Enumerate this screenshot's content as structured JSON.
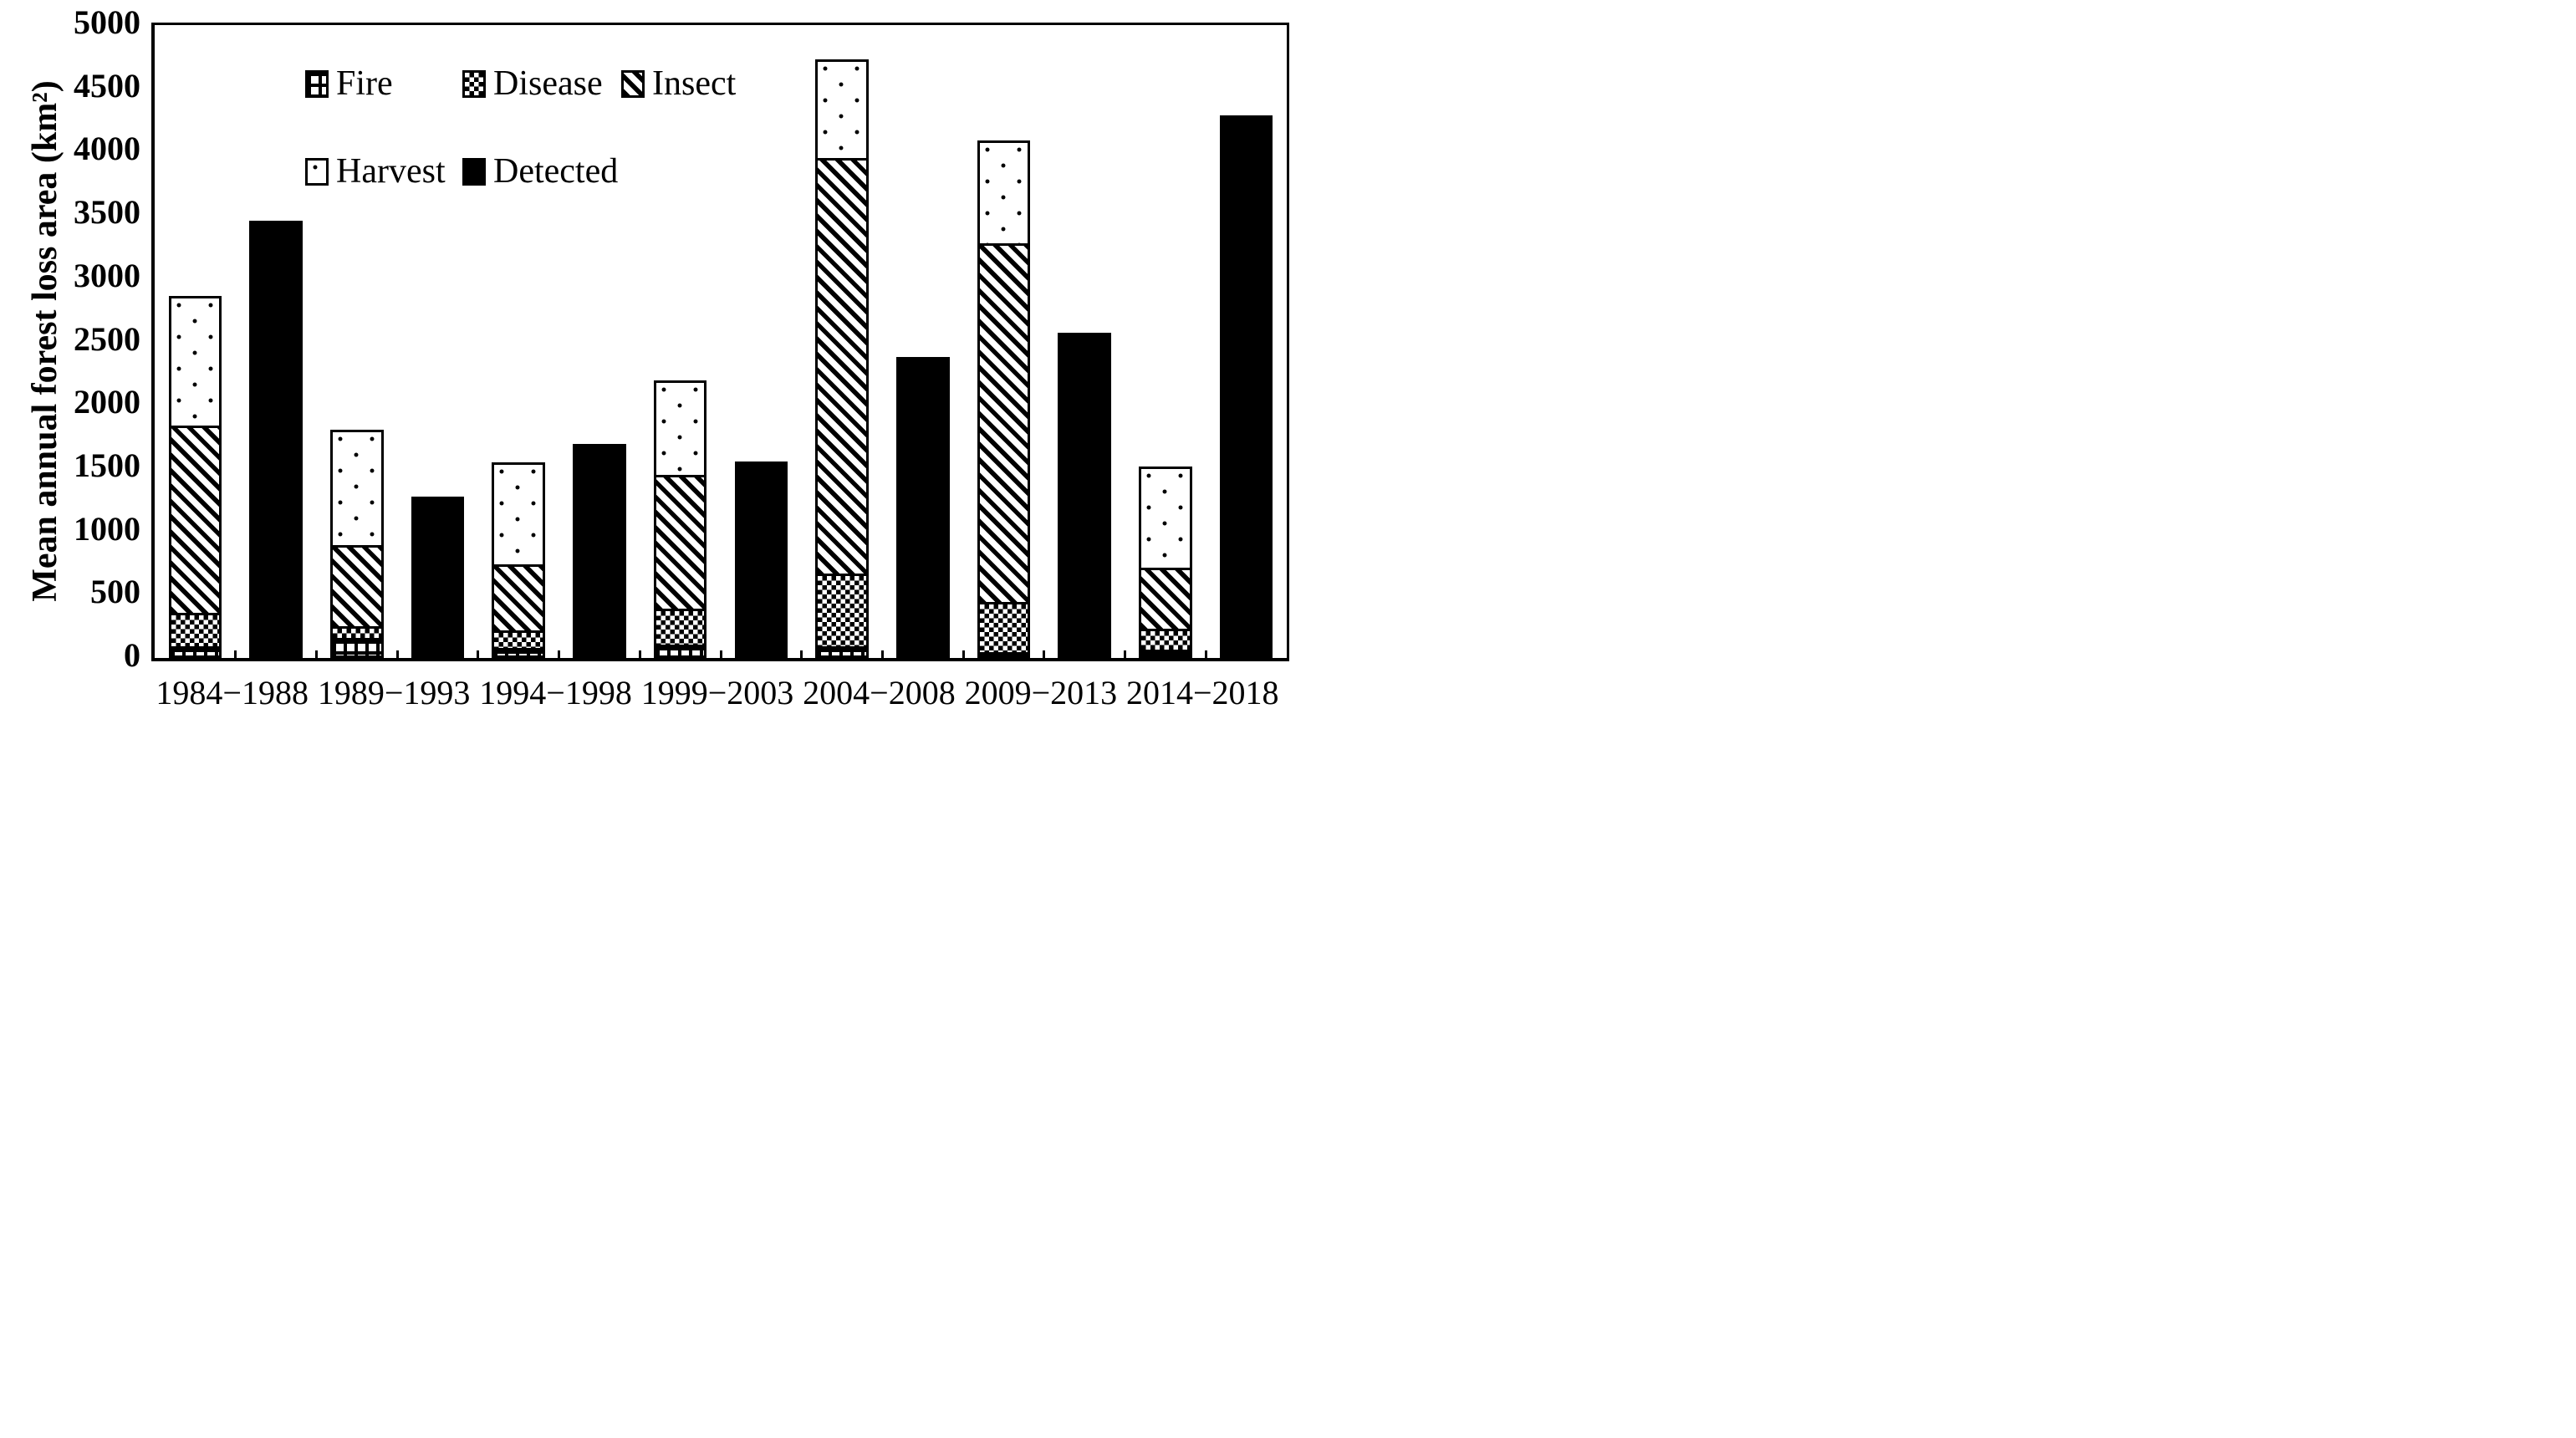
{
  "figure": {
    "background": "#ffffff",
    "ink": "#000000"
  },
  "y_axis": {
    "title": "Mean annual forest loss area (km²)",
    "min": 0,
    "max": 5000,
    "step": 500
  },
  "x_axis": {
    "categories": [
      "1984−1988",
      "1989−1993",
      "1994−1998",
      "1999−2003",
      "2004−2008",
      "2009−2013",
      "2014−2018"
    ]
  },
  "legend": {
    "rows": [
      [
        {
          "label": "Fire",
          "pattern": "fire-pattern"
        },
        {
          "label": "Disease",
          "pattern": "disease-pattern"
        },
        {
          "label": "Insect",
          "pattern": "insect-pattern"
        }
      ],
      [
        {
          "label": "Harvest",
          "pattern": "harvest-pattern"
        },
        {
          "label": "Detected",
          "pattern": "detected-pattern"
        }
      ]
    ]
  },
  "chart_data": {
    "type": "bar",
    "subtype": "stacked-plus-single-grouped",
    "title": "",
    "xlabel": "",
    "ylabel": "Mean annual forest loss area (km²)",
    "ylim": [
      0,
      5000
    ],
    "ytick_step": 500,
    "grid": false,
    "legend_position": "inside-top-left",
    "categories": [
      "1984−1988",
      "1989−1993",
      "1994−1998",
      "1999−2003",
      "2004−2008",
      "2009−2013",
      "2014−2018"
    ],
    "stack_order_bottom_to_top": [
      "Fire",
      "Disease",
      "Insect",
      "Harvest"
    ],
    "series": [
      {
        "name": "Fire",
        "pattern": "fire-pattern",
        "values": [
          75,
          140,
          60,
          90,
          70,
          25,
          45
        ]
      },
      {
        "name": "Disease",
        "pattern": "disease-pattern",
        "values": [
          265,
          95,
          140,
          285,
          580,
          400,
          170
        ]
      },
      {
        "name": "Insect",
        "pattern": "insect-pattern",
        "values": [
          1500,
          655,
          540,
          1080,
          3310,
          2865,
          495
        ]
      },
      {
        "name": "Harvest",
        "pattern": "harvest-pattern",
        "values": [
          1020,
          910,
          805,
          735,
          770,
          800,
          800
        ]
      },
      {
        "name": "Detected",
        "pattern": "detected-pattern",
        "values": [
          3455,
          1275,
          1690,
          1555,
          2375,
          2570,
          4285
        ]
      }
    ],
    "stacked_totals": [
      2860,
      1800,
      1545,
      2190,
      4730,
      4090,
      1510
    ]
  }
}
